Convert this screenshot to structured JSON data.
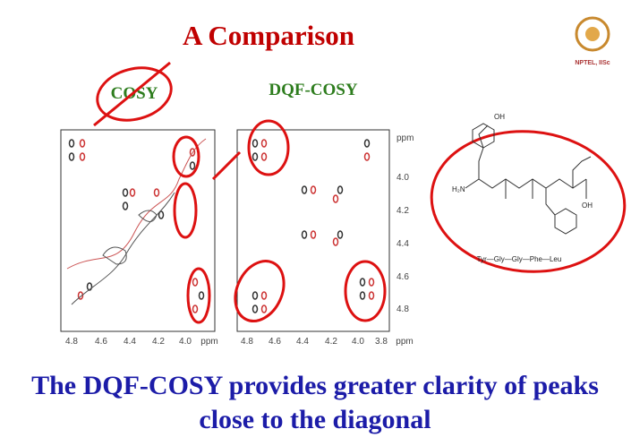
{
  "header": {
    "title": "A Comparison",
    "logo_text": "NPTEL, IISc"
  },
  "panels": [
    {
      "label": "COSY",
      "x_ticks": [
        "4.8",
        "4.6",
        "4.4",
        "4.2",
        "4.0",
        "ppm"
      ]
    },
    {
      "label": "DQF-COSY",
      "x_ticks": [
        "4.8",
        "4.6",
        "4.4",
        "4.2",
        "4.0",
        "3.8",
        "ppm"
      ],
      "y_ticks": [
        "ppm",
        "4.0",
        "4.2",
        "4.4",
        "4.6",
        "4.8"
      ]
    }
  ],
  "molecule": {
    "caption": "Tyr—Gly—Gly—Phe—Leu",
    "atoms": [
      "OH",
      "H₂N",
      "OH"
    ]
  },
  "footer": {
    "lines": [
      "The DQF-COSY provides greater clarity of peaks",
      "close to the diagonal"
    ]
  }
}
